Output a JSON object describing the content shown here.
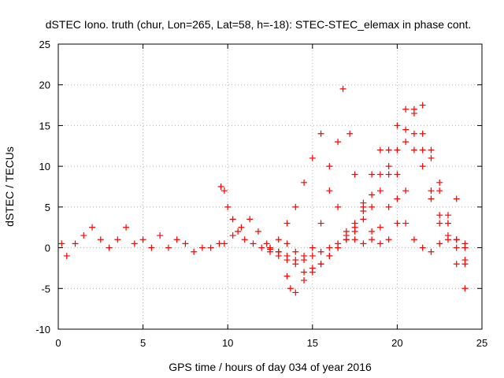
{
  "chart_data": {
    "type": "scatter",
    "title": "dSTEC Iono. truth (chur, Lon=265, Lat=58, h=-18): STEC-STEC_elemax in phase cont.",
    "xlabel": "GPS time / hours of day 034 of year 2016",
    "ylabel": "dSTEC  / TECUs",
    "xlim": [
      0,
      25
    ],
    "ylim": [
      -10,
      25
    ],
    "xticks": [
      0,
      5,
      10,
      15,
      20,
      25
    ],
    "yticks": [
      -10,
      -5,
      0,
      5,
      10,
      15,
      20,
      25
    ],
    "grid": true,
    "marker": "+",
    "color": "#ff0000",
    "series": [
      {
        "x": [
          0.2,
          0.5,
          1.0,
          1.5,
          2.0,
          2.5,
          3.0,
          3.5,
          4.0,
          4.5,
          5.0,
          5.5,
          6.0,
          6.5,
          7.0,
          7.5,
          8.0,
          8.5,
          9.0,
          9.5
        ],
        "y": [
          0.5,
          -1.0,
          0.5,
          1.5,
          2.5,
          1.0,
          0.0,
          1.0,
          2.5,
          0.5,
          1.0,
          0.0,
          1.5,
          0.0,
          1.0,
          0.5,
          -0.5,
          0.0,
          0.0,
          0.5
        ]
      },
      {
        "x": [
          9.6,
          9.8,
          10.0,
          10.3,
          10.6,
          11.0,
          11.5,
          12.0,
          12.5
        ],
        "y": [
          7.5,
          7.0,
          5.0,
          3.5,
          2.0,
          1.0,
          0.5,
          0.0,
          -0.2
        ]
      },
      {
        "x": [
          9.8,
          10.3,
          10.8,
          11.3,
          11.8,
          12.3
        ],
        "y": [
          0.5,
          1.5,
          2.5,
          3.5,
          2.0,
          0.5
        ]
      },
      {
        "x": [
          12.5,
          13.0,
          13.5,
          13.7,
          14.0,
          14.5,
          15.0,
          15.5,
          16.0,
          16.5,
          17.0,
          17.5,
          18.0,
          18.5,
          19.0,
          19.5,
          20.0,
          20.5,
          21.0,
          21.5,
          22.0,
          22.5,
          23.0,
          23.5,
          24.0
        ],
        "y": [
          0.0,
          -1.0,
          -3.5,
          -5.0,
          -5.5,
          -4.0,
          -3.0,
          -2.0,
          -1.0,
          0.0,
          1.0,
          2.0,
          3.5,
          5.0,
          7.0,
          9.0,
          12.0,
          14.5,
          16.5,
          14.0,
          11.0,
          8.0,
          4.0,
          1.0,
          -2.0
        ]
      },
      {
        "x": [
          13.0,
          13.5,
          14.0,
          14.5,
          15.0,
          15.5,
          16.0,
          16.5,
          17.0,
          17.5,
          18.0,
          18.5,
          19.0,
          19.5,
          20.0,
          20.5,
          21.0,
          21.5,
          22.0,
          22.5,
          23.0,
          23.5,
          24.0
        ],
        "y": [
          -0.5,
          -1.5,
          -2.0,
          -3.0,
          -2.5,
          -2.0,
          -1.0,
          0.0,
          1.0,
          2.5,
          4.5,
          6.5,
          9.0,
          12.0,
          15.0,
          17.0,
          14.0,
          10.0,
          7.0,
          4.0,
          1.5,
          -2.0,
          -5.0
        ]
      },
      {
        "x": [
          12.5,
          13.0,
          13.5,
          14.0,
          14.5,
          15.0,
          15.5,
          16.0,
          16.5,
          17.0,
          17.5,
          18.0,
          18.5,
          19.0,
          19.5,
          20.0,
          20.5,
          21.0,
          21.5,
          22.0,
          22.5,
          23.0,
          23.5,
          24.0
        ],
        "y": [
          0.0,
          -0.5,
          -1.0,
          -1.5,
          -1.5,
          -1.0,
          -0.5,
          0.0,
          0.5,
          1.5,
          3.0,
          5.5,
          9.0,
          12.0,
          10.0,
          6.0,
          3.0,
          1.0,
          0.0,
          -0.5,
          0.5,
          3.0,
          6.0,
          0.5
        ]
      },
      {
        "x": [
          12.5,
          13.0,
          13.5,
          14.0,
          14.5,
          15.0,
          15.5,
          16.0,
          16.5,
          17.0,
          17.5,
          18.0,
          18.5,
          19.0,
          19.5,
          20.0,
          20.5,
          21.0,
          21.5,
          22.0,
          22.5,
          23.0,
          23.5,
          24.0
        ],
        "y": [
          -0.5,
          1.0,
          3.0,
          5.0,
          8.0,
          11.0,
          14.0,
          10.0,
          5.0,
          2.0,
          1.0,
          0.5,
          1.0,
          2.5,
          5.0,
          9.0,
          13.0,
          17.0,
          12.0,
          6.0,
          3.0,
          1.0,
          0.0,
          -1.5
        ]
      },
      {
        "x": [
          13.5,
          14.0,
          14.5,
          15.0,
          15.5,
          16.0,
          16.5,
          16.8,
          17.2,
          17.5,
          18.0,
          18.5,
          19.0,
          19.5,
          20.0,
          20.5,
          21.0,
          21.5,
          22.0,
          22.5,
          23.0,
          23.5,
          24.0
        ],
        "y": [
          0.5,
          -0.5,
          -1.0,
          0.0,
          3.0,
          7.0,
          13.0,
          19.5,
          14.0,
          9.0,
          5.0,
          2.0,
          0.5,
          1.0,
          3.0,
          7.0,
          12.0,
          17.5,
          12.0,
          7.0,
          3.0,
          1.0,
          0.0
        ]
      }
    ]
  }
}
